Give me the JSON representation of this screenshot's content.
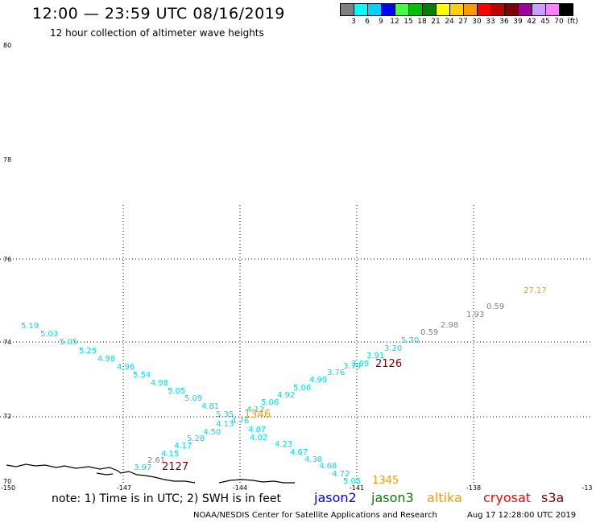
{
  "header": {
    "title": "12:00 — 23:59 UTC 08/16/2019",
    "subtitle": "12 hour collection of altimeter wave heights"
  },
  "color_scale": {
    "labels": [
      "3",
      "6",
      "9",
      "12",
      "15",
      "18",
      "21",
      "24",
      "27",
      "30",
      "33",
      "36",
      "39",
      "42",
      "45",
      "70",
      "(ft)"
    ],
    "colors": [
      "#808080",
      "#00ffff",
      "#00d0ff",
      "#0000ff",
      "#40ff40",
      "#00c000",
      "#008000",
      "#ffff00",
      "#ffd000",
      "#ff9900",
      "#ff0000",
      "#c00000",
      "#800000",
      "#a000a0",
      "#c8a0ff",
      "#ff80ff",
      "#000000"
    ]
  },
  "map": {
    "lat_labels": [
      "80",
      "78",
      "76",
      "74",
      "72",
      "70"
    ],
    "lon_labels": [
      "-150",
      "-147",
      "-144",
      "-141",
      "-138",
      "-13"
    ],
    "track_a_values": [
      "5.19",
      "5.03",
      "5.05",
      "5.25",
      "4.98",
      "4.96",
      "5.54",
      "4.98",
      "5.05",
      "5.09",
      "4.81",
      "5.35",
      "4.87",
      "4.23",
      "4.67",
      "4.38",
      "4.68",
      "4.72",
      "5.05"
    ],
    "track_b_values": [
      "3.97",
      "2.61",
      "4.15",
      "4.17",
      "5.28",
      "4.50",
      "4.13",
      "4.76",
      "4.12",
      "5.06",
      "4.92",
      "5.06",
      "4.99",
      "3.76",
      "3.79",
      "3.69",
      "3.91",
      "3.20",
      "5.70",
      "0.59",
      "2.98",
      "1.93",
      "0.59",
      "27.17"
    ],
    "track_a_center": "4.02",
    "pass_labels": [
      "2126",
      "2127",
      "1346",
      "1345"
    ],
    "colors": {
      "cyan": "#00e0e0",
      "gray": "#808080",
      "orange": "#ff9900",
      "darkred": "#800000"
    }
  },
  "footer": {
    "note": "note: 1) Time is in UTC; 2) SWH is in feet",
    "satellites": [
      {
        "name": "jason2",
        "color": "#0000ff"
      },
      {
        "name": "jason3",
        "color": "#008000"
      },
      {
        "name": "altika",
        "color": "#ff9900"
      },
      {
        "name": "cryosat",
        "color": "#ff0000"
      },
      {
        "name": "s3a",
        "color": "#800000"
      }
    ],
    "credit": "NOAA/NESDIS Center for Satellite Applications and Research",
    "timestamp": "Aug 17 12:28:00 UTC 2019"
  }
}
